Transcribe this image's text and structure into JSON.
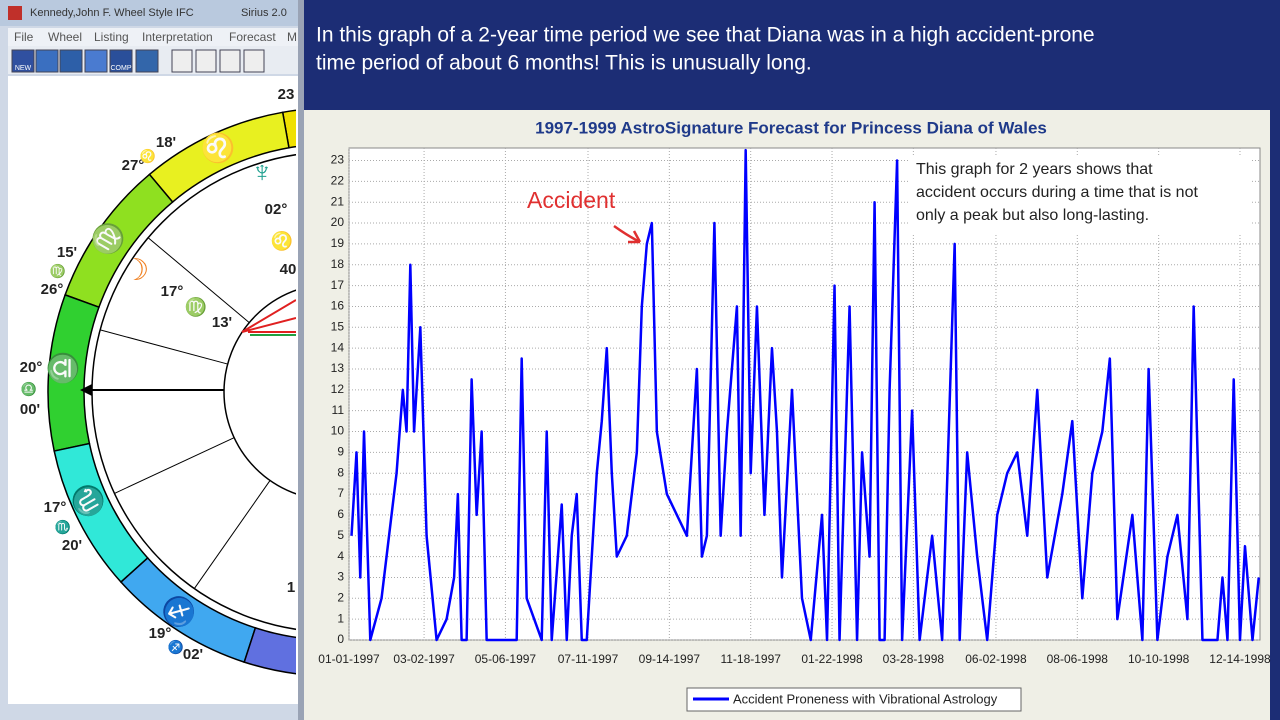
{
  "window": {
    "title": "Kennedy,John F. Wheel Style IFC",
    "app": "Sirius 2.0",
    "menu": [
      "File",
      "Wheel",
      "Listing",
      "Interpretation",
      "Forecast",
      "M"
    ],
    "toolbar": [
      "NEW",
      "COMP"
    ]
  },
  "wheel": {
    "labels": [
      "23",
      "18'",
      "27°",
      "15'",
      "26°",
      "20°",
      "00'",
      "17°",
      "20'",
      "19°",
      "02'",
      "02°",
      "40",
      "17°",
      "13'",
      "1"
    ],
    "glyphs": [
      "♌",
      "♍",
      "♎",
      "♏",
      "♐",
      "♌",
      "♍",
      "♎",
      "♏",
      "♐",
      "♍",
      "♌",
      "♆",
      "☽"
    ]
  },
  "header": {
    "lines": [
      "In this graph of a 2-year time period we see that Diana was in a high accident-prone",
      "time period of about 6 months! This is unusually long."
    ]
  },
  "chart_data": {
    "type": "line",
    "title": "1997-1999 AstroSignature Forecast for Princess Diana of Wales",
    "annotations": [
      "Accident"
    ],
    "note_lines": [
      "This graph for 2 years shows that",
      "accident occurs during a time that is not",
      "only a peak but also long-lasting."
    ],
    "x": [
      "1997-01-03",
      "1997-01-07",
      "1997-01-10",
      "1997-01-13",
      "1997-01-18",
      "1997-01-27",
      "1997-02-08",
      "1997-02-13",
      "1997-02-16",
      "1997-02-19",
      "1997-02-22",
      "1997-02-27",
      "1997-03-04",
      "1997-03-12",
      "1997-03-20",
      "1997-03-26",
      "1997-03-29",
      "1997-04-01",
      "1997-04-05",
      "1997-04-09",
      "1997-04-13",
      "1997-04-17",
      "1997-04-21",
      "1997-05-15",
      "1997-05-19",
      "1997-05-23",
      "1997-06-04",
      "1997-06-08",
      "1997-06-12",
      "1997-06-20",
      "1997-06-24",
      "1997-06-28",
      "1997-07-02",
      "1997-07-06",
      "1997-07-10",
      "1997-07-18",
      "1997-07-22",
      "1997-07-26",
      "1997-07-30",
      "1997-08-03",
      "1997-08-11",
      "1997-08-19",
      "1997-08-23",
      "1997-08-27",
      "1997-08-31",
      "1997-09-04",
      "1997-09-12",
      "1997-09-20",
      "1997-09-28",
      "1997-10-06",
      "1997-10-10",
      "1997-10-14",
      "1997-10-20",
      "1997-10-25",
      "1997-10-30",
      "1997-11-07",
      "1997-11-10",
      "1997-11-14",
      "1997-11-18",
      "1997-11-23",
      "1997-11-29",
      "1997-12-05",
      "1997-12-09",
      "1997-12-13",
      "1997-12-21",
      "1997-12-29",
      "1998-01-05",
      "1998-01-14",
      "1998-01-18",
      "1998-01-24",
      "1998-01-28",
      "1998-02-05",
      "1998-02-11",
      "1998-02-15",
      "1998-02-21",
      "1998-02-25",
      "1998-03-01",
      "1998-03-05",
      "1998-03-09",
      "1998-03-15",
      "1998-03-19",
      "1998-03-27",
      "1998-04-02",
      "1998-04-12",
      "1998-04-20",
      "1998-04-30",
      "1998-05-04",
      "1998-05-10",
      "1998-05-18",
      "1998-05-26",
      "1998-06-03",
      "1998-06-11",
      "1998-06-19",
      "1998-06-27",
      "1998-07-05",
      "1998-07-13",
      "1998-07-25",
      "1998-08-02",
      "1998-08-10",
      "1998-08-18",
      "1998-08-26",
      "1998-09-01",
      "1998-09-07",
      "1998-09-19",
      "1998-09-27",
      "1998-10-02",
      "1998-10-09",
      "1998-10-17",
      "1998-10-25",
      "1998-11-02",
      "1998-11-07",
      "1998-11-14",
      "1998-11-26",
      "1998-11-30",
      "1998-12-04",
      "1998-12-09",
      "1998-12-14",
      "1998-12-18",
      "1998-12-24",
      "1998-12-29"
    ],
    "series": [
      {
        "name": "Accident Proneness with Vibrational Astrology",
        "color": "#0000ff",
        "values": [
          5,
          9,
          3,
          10,
          0,
          2,
          8,
          12,
          10,
          18,
          10,
          15,
          5,
          0,
          1,
          3,
          7,
          0,
          0,
          12.5,
          6,
          10,
          0,
          0,
          13.5,
          2,
          0,
          10,
          0,
          6.5,
          0,
          5,
          7,
          0,
          0,
          8,
          10.5,
          14,
          8,
          4,
          5,
          9,
          16,
          19,
          20,
          10,
          7,
          6,
          5,
          13,
          4,
          5,
          20,
          5,
          10,
          16,
          5,
          23.5,
          8,
          16,
          6,
          14,
          10,
          3,
          12,
          2,
          0,
          6,
          0,
          17,
          0,
          16,
          0,
          9,
          4,
          21,
          0,
          0,
          12,
          23,
          0,
          11,
          0,
          5,
          0,
          19,
          0,
          9,
          4,
          0,
          6,
          8,
          9,
          5,
          12,
          3,
          7,
          10.5,
          2,
          8,
          10,
          13.5,
          1,
          6,
          0,
          13,
          0,
          4,
          6,
          1,
          16,
          0,
          0,
          3,
          0,
          12.5,
          0,
          4.5,
          0,
          3
        ]
      }
    ],
    "xlim": [
      "1997-01-01",
      "1998-12-30"
    ],
    "xticks": [
      {
        "value": "1997-01-01",
        "label": "01-01-1997"
      },
      {
        "value": "1997-03-02",
        "label": "03-02-1997"
      },
      {
        "value": "1997-05-06",
        "label": "05-06-1997"
      },
      {
        "value": "1997-07-11",
        "label": "07-11-1997"
      },
      {
        "value": "1997-09-14",
        "label": "09-14-1997"
      },
      {
        "value": "1997-11-18",
        "label": "11-18-1997"
      },
      {
        "value": "1998-01-22",
        "label": "01-22-1998"
      },
      {
        "value": "1998-03-28",
        "label": "03-28-1998"
      },
      {
        "value": "1998-06-02",
        "label": "06-02-1998"
      },
      {
        "value": "1998-08-06",
        "label": "08-06-1998"
      },
      {
        "value": "1998-10-10",
        "label": "10-10-1998"
      },
      {
        "value": "1998-12-14",
        "label": "12-14-1998"
      }
    ],
    "ylim": [
      0,
      23.6
    ],
    "yticks": [
      0,
      1,
      2,
      3,
      4,
      5,
      6,
      7,
      8,
      9,
      10,
      11,
      12,
      13,
      14,
      15,
      16,
      17,
      18,
      19,
      20,
      21,
      22,
      23
    ],
    "grid": true,
    "legend": "bottom"
  }
}
